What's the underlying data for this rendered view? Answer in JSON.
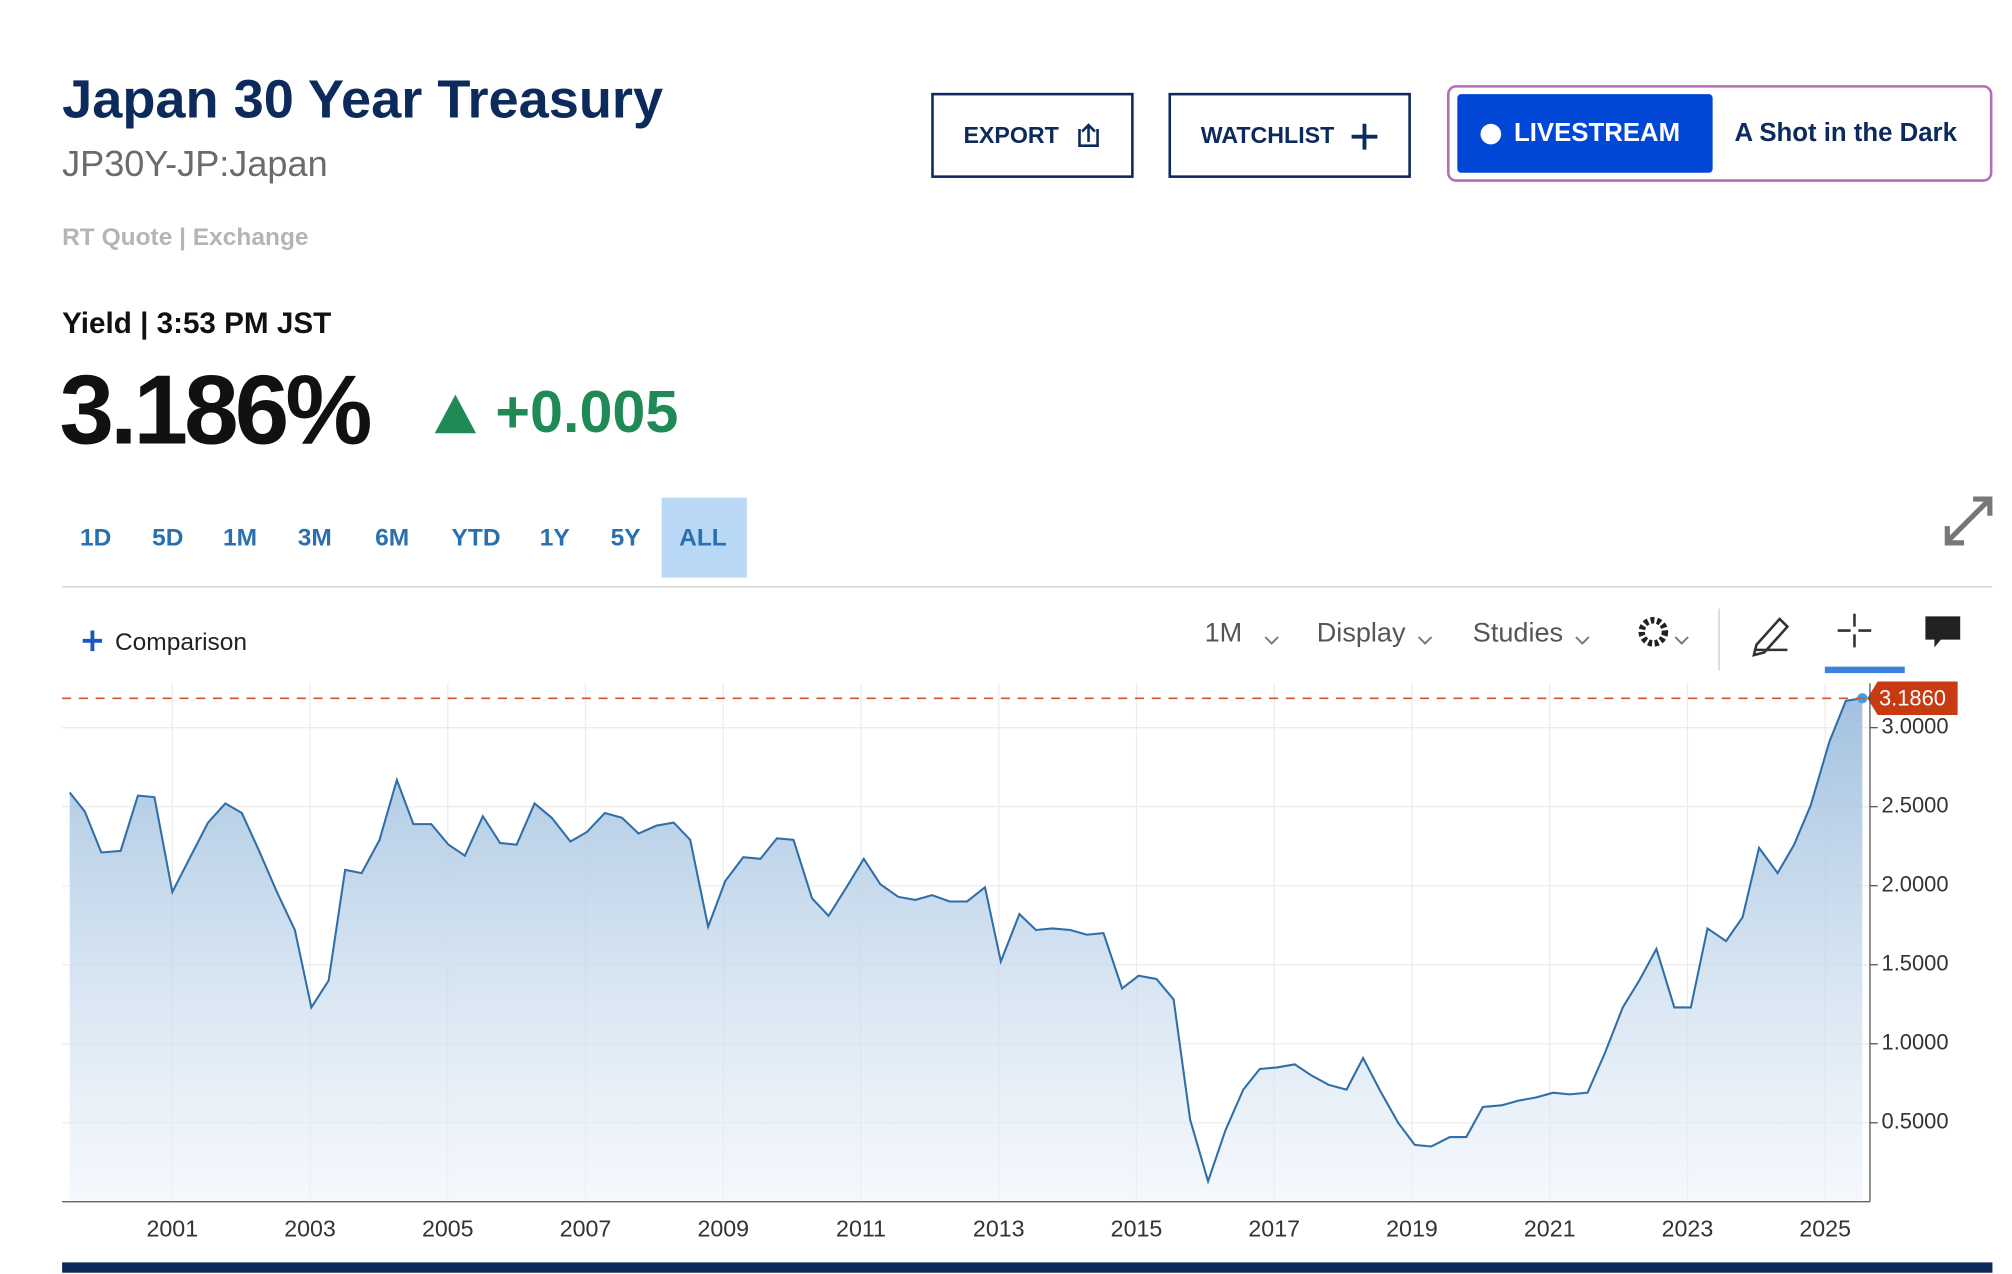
{
  "header": {
    "title": "Japan 30 Year Treasury",
    "symbol": "JP30Y-JP:Japan",
    "quote_source": "RT Quote | Exchange",
    "yield_time": "Yield | 3:53 PM JST",
    "price": "3.186%",
    "change": "+0.005"
  },
  "buttons": {
    "export": "EXPORT",
    "watchlist": "WATCHLIST",
    "livestream": "LIVESTREAM",
    "show": "A Shot in the Dark"
  },
  "ranges": [
    "1D",
    "5D",
    "1M",
    "3M",
    "6M",
    "YTD",
    "1Y",
    "5Y",
    "ALL"
  ],
  "toolbar": {
    "comparison": "Comparison",
    "interval": "1M",
    "display": "Display",
    "studies": "Studies"
  },
  "chart_data": {
    "type": "area",
    "color": "#2f6ea8",
    "x": [
      1999.51,
      1999.73,
      1999.97,
      2000.25,
      2000.5,
      2000.74,
      2001.0,
      2001.26,
      2001.52,
      2001.77,
      2002.01,
      2002.26,
      2002.52,
      2002.78,
      2003.02,
      2003.27,
      2003.51,
      2003.75,
      2004.01,
      2004.26,
      2004.5,
      2004.76,
      2005.01,
      2005.25,
      2005.51,
      2005.76,
      2006.0,
      2006.26,
      2006.51,
      2006.78,
      2007.02,
      2007.28,
      2007.53,
      2007.77,
      2008.03,
      2008.28,
      2008.52,
      2008.78,
      2009.03,
      2009.29,
      2009.54,
      2009.78,
      2010.02,
      2010.29,
      2010.53,
      2010.79,
      2011.04,
      2011.28,
      2011.54,
      2011.79,
      2012.03,
      2012.29,
      2012.54,
      2012.8,
      2013.03,
      2013.3,
      2013.54,
      2013.78,
      2014.04,
      2014.28,
      2014.52,
      2014.79,
      2015.03,
      2015.29,
      2015.54,
      2015.78,
      2016.04,
      2016.29,
      2016.55,
      2016.79,
      2017.04,
      2017.3,
      2017.54,
      2017.79,
      2018.05,
      2018.29,
      2018.54,
      2018.8,
      2019.04,
      2019.28,
      2019.55,
      2019.79,
      2020.03,
      2020.3,
      2020.54,
      2020.8,
      2021.05,
      2021.29,
      2021.55,
      2021.8,
      2022.06,
      2022.3,
      2022.55,
      2022.81,
      2023.05,
      2023.29,
      2023.56,
      2023.8,
      2024.04,
      2024.31,
      2024.55,
      2024.79,
      2025.06,
      2025.3,
      2025.54
    ],
    "values": [
      2.59,
      2.47,
      2.21,
      2.22,
      2.57,
      2.56,
      1.96,
      2.18,
      2.4,
      2.52,
      2.46,
      2.22,
      1.96,
      1.72,
      1.23,
      1.4,
      2.1,
      2.08,
      2.29,
      2.67,
      2.39,
      2.39,
      2.26,
      2.19,
      2.44,
      2.27,
      2.26,
      2.52,
      2.43,
      2.28,
      2.34,
      2.46,
      2.43,
      2.33,
      2.38,
      2.4,
      2.29,
      1.74,
      2.03,
      2.18,
      2.17,
      2.3,
      2.29,
      1.92,
      1.81,
      1.99,
      2.17,
      2.01,
      1.93,
      1.91,
      1.94,
      1.9,
      1.9,
      1.99,
      1.52,
      1.82,
      1.72,
      1.73,
      1.72,
      1.69,
      1.7,
      1.35,
      1.43,
      1.41,
      1.28,
      0.52,
      0.13,
      0.45,
      0.71,
      0.84,
      0.85,
      0.87,
      0.8,
      0.74,
      0.71,
      0.91,
      0.7,
      0.5,
      0.36,
      0.35,
      0.41,
      0.41,
      0.6,
      0.61,
      0.64,
      0.66,
      0.69,
      0.68,
      0.69,
      0.94,
      1.23,
      1.4,
      1.6,
      1.23,
      1.23,
      1.73,
      1.65,
      1.8,
      2.24,
      2.08,
      2.26,
      2.51,
      2.91,
      3.17,
      3.186
    ],
    "last_value": {
      "value": 3.186,
      "label": "3.1860"
    },
    "xlim": [
      1999.4,
      2025.65
    ],
    "xticks": [
      2001,
      2003,
      2005,
      2007,
      2009,
      2011,
      2013,
      2015,
      2017,
      2019,
      2021,
      2023,
      2025
    ],
    "ylim": [
      0,
      3.28
    ],
    "yticks": [
      {
        "value": 0.5,
        "label": "0.5000"
      },
      {
        "value": 1,
        "label": "1.0000"
      },
      {
        "value": 1.5,
        "label": "1.5000"
      },
      {
        "value": 2,
        "label": "2.0000"
      },
      {
        "value": 2.5,
        "label": "2.5000"
      },
      {
        "value": 3,
        "label": "3.0000"
      }
    ],
    "grid": true
  }
}
